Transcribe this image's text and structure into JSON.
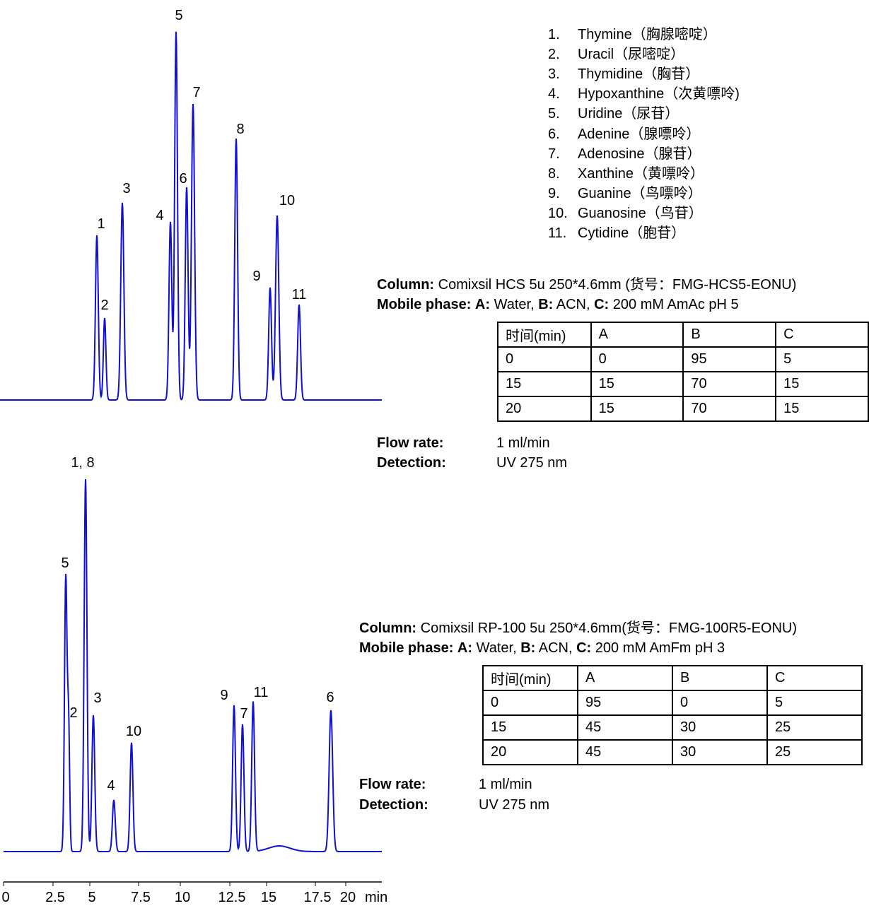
{
  "compounds": [
    {
      "number": "1.",
      "name": "Thymine（胸腺嘧啶）"
    },
    {
      "number": "2.",
      "name": "Uracil（尿嘧啶）"
    },
    {
      "number": "3.",
      "name": "Thymidine（胸苷）"
    },
    {
      "number": "4.",
      "name": "Hypoxanthine（次黄嘌呤)"
    },
    {
      "number": "5.",
      "name": "Uridine（尿苷）"
    },
    {
      "number": "6.",
      "name": "Adenine（腺嘌呤）"
    },
    {
      "number": "7.",
      "name": "Adenosine（腺苷）"
    },
    {
      "number": "8.",
      "name": "Xanthine（黄嘌呤）"
    },
    {
      "number": "9.",
      "name": "Guanine（鸟嘌呤）"
    },
    {
      "number": "10.",
      "name": "Guanosine（鸟苷）"
    },
    {
      "number": "11.",
      "name": "Cytidine（胞苷）"
    }
  ],
  "chromatogram_1": {
    "peak_labels": [
      "1",
      "2",
      "3",
      "4",
      "5",
      "6",
      "7",
      "8",
      "9",
      "10",
      "11"
    ]
  },
  "chromatogram_2": {
    "peak_labels": [
      "5",
      "2",
      "1, 8",
      "3",
      "4",
      "10",
      "9",
      "7",
      "11",
      "6"
    ]
  },
  "x_axis": {
    "ticks": [
      0,
      2.5,
      5,
      7.5,
      10,
      12.5,
      15,
      17.5,
      20
    ],
    "unit": "min"
  },
  "methods": [
    {
      "column_label": "Column:",
      "column": "Comixsil HCS 5u 250*4.6mm (货号：FMG-HCS5-EONU)",
      "mobile_label": "Mobile phase:",
      "mobile_parts": [
        "A:",
        " Water, ",
        "B:",
        " ACN, ",
        "C:",
        " 200 mM AmAc pH 5"
      ],
      "table": {
        "header": [
          "时间(min)",
          "A",
          "B",
          "C"
        ],
        "rows": [
          [
            0,
            0,
            95,
            5
          ],
          [
            15,
            15,
            70,
            15
          ],
          [
            20,
            15,
            70,
            15
          ]
        ]
      },
      "flow_label": "Flow rate:",
      "flow": "1 ml/min",
      "detection_label": "Detection:",
      "detection": "UV 275 nm"
    },
    {
      "column_label": "Column:",
      "column": "Comixsil RP-100 5u 250*4.6mm(货号：FMG-100R5-EONU)",
      "mobile_label": "Mobile phase:",
      "mobile_parts": [
        "A:",
        " Water, ",
        "B:",
        " ACN, ",
        "C:",
        " 200 mM AmFm pH 3"
      ],
      "table": {
        "header": [
          "时间(min)",
          "A",
          "B",
          "C"
        ],
        "rows": [
          [
            0,
            95,
            0,
            5
          ],
          [
            15,
            45,
            30,
            25
          ],
          [
            20,
            45,
            30,
            25
          ]
        ]
      },
      "flow_label": "Flow rate:",
      "flow": "1 ml/min",
      "detection_label": "Detection:",
      "detection": "UV 275 nm"
    }
  ]
}
